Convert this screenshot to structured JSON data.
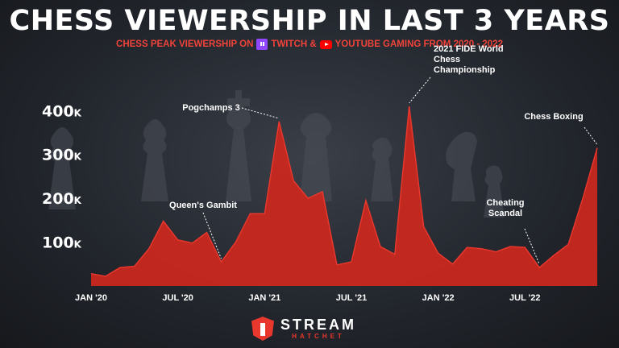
{
  "header": {
    "title": "CHESS VIEWERSHIP IN LAST 3 YEARS",
    "subtitle_prefix": "CHESS PEAK VIEWERSHIP ON",
    "subtitle_twitch": "TWITCH &",
    "subtitle_youtube": "YOUTUBE GAMING FROM  2020 - 2022"
  },
  "colors": {
    "accent": "#e8372c",
    "area_fill": "#c9281f",
    "twitch": "#9146ff",
    "youtube": "#ff0000"
  },
  "icons": [
    "twitch-icon",
    "youtube-icon",
    "stream-hatchet-logo-icon"
  ],
  "logo": {
    "name": "STREAM",
    "sub": "HATCHET"
  },
  "chart_data": {
    "type": "area",
    "x": [
      "2020-01",
      "2020-02",
      "2020-03",
      "2020-04",
      "2020-05",
      "2020-06",
      "2020-07",
      "2020-08",
      "2020-09",
      "2020-10",
      "2020-11",
      "2020-12",
      "2021-01",
      "2021-02",
      "2021-03",
      "2021-04",
      "2021-05",
      "2021-06",
      "2021-07",
      "2021-08",
      "2021-09",
      "2021-10",
      "2021-11",
      "2021-12",
      "2022-01",
      "2022-02",
      "2022-03",
      "2022-04",
      "2022-05",
      "2022-06",
      "2022-07",
      "2022-08",
      "2022-09",
      "2022-10",
      "2022-11",
      "2022-12"
    ],
    "values": [
      28,
      22,
      42,
      45,
      85,
      148,
      105,
      98,
      122,
      55,
      100,
      165,
      165,
      375,
      240,
      200,
      215,
      48,
      55,
      195,
      90,
      72,
      410,
      135,
      75,
      50,
      88,
      85,
      78,
      90,
      88,
      42,
      70,
      95,
      200,
      315
    ],
    "y_ticks": [
      {
        "value": 100,
        "label": "100",
        "unit": "K"
      },
      {
        "value": 200,
        "label": "200",
        "unit": "K"
      },
      {
        "value": 300,
        "label": "300",
        "unit": "K"
      },
      {
        "value": 400,
        "label": "400",
        "unit": "K"
      }
    ],
    "x_ticks": [
      {
        "x": "2020-01",
        "label": "JAN '20"
      },
      {
        "x": "2020-07",
        "label": "JUL '20"
      },
      {
        "x": "2021-01",
        "label": "JAN '21"
      },
      {
        "x": "2021-07",
        "label": "JUL '21"
      },
      {
        "x": "2022-01",
        "label": "JAN '22"
      },
      {
        "x": "2022-07",
        "label": "JUL '22"
      }
    ],
    "ylim": [
      0,
      430
    ],
    "grid": false,
    "annotations": [
      {
        "x": "2020-10",
        "lines": [
          "Queen's Gambit"
        ]
      },
      {
        "x": "2021-02",
        "lines": [
          "Pogchamps 3"
        ]
      },
      {
        "x": "2021-11",
        "lines": [
          "2021 FIDE World",
          "Chess",
          "Championship"
        ]
      },
      {
        "x": "2022-08",
        "lines": [
          "Cheating",
          "Scandal"
        ]
      },
      {
        "x": "2022-12",
        "lines": [
          "Chess Boxing"
        ]
      }
    ]
  }
}
